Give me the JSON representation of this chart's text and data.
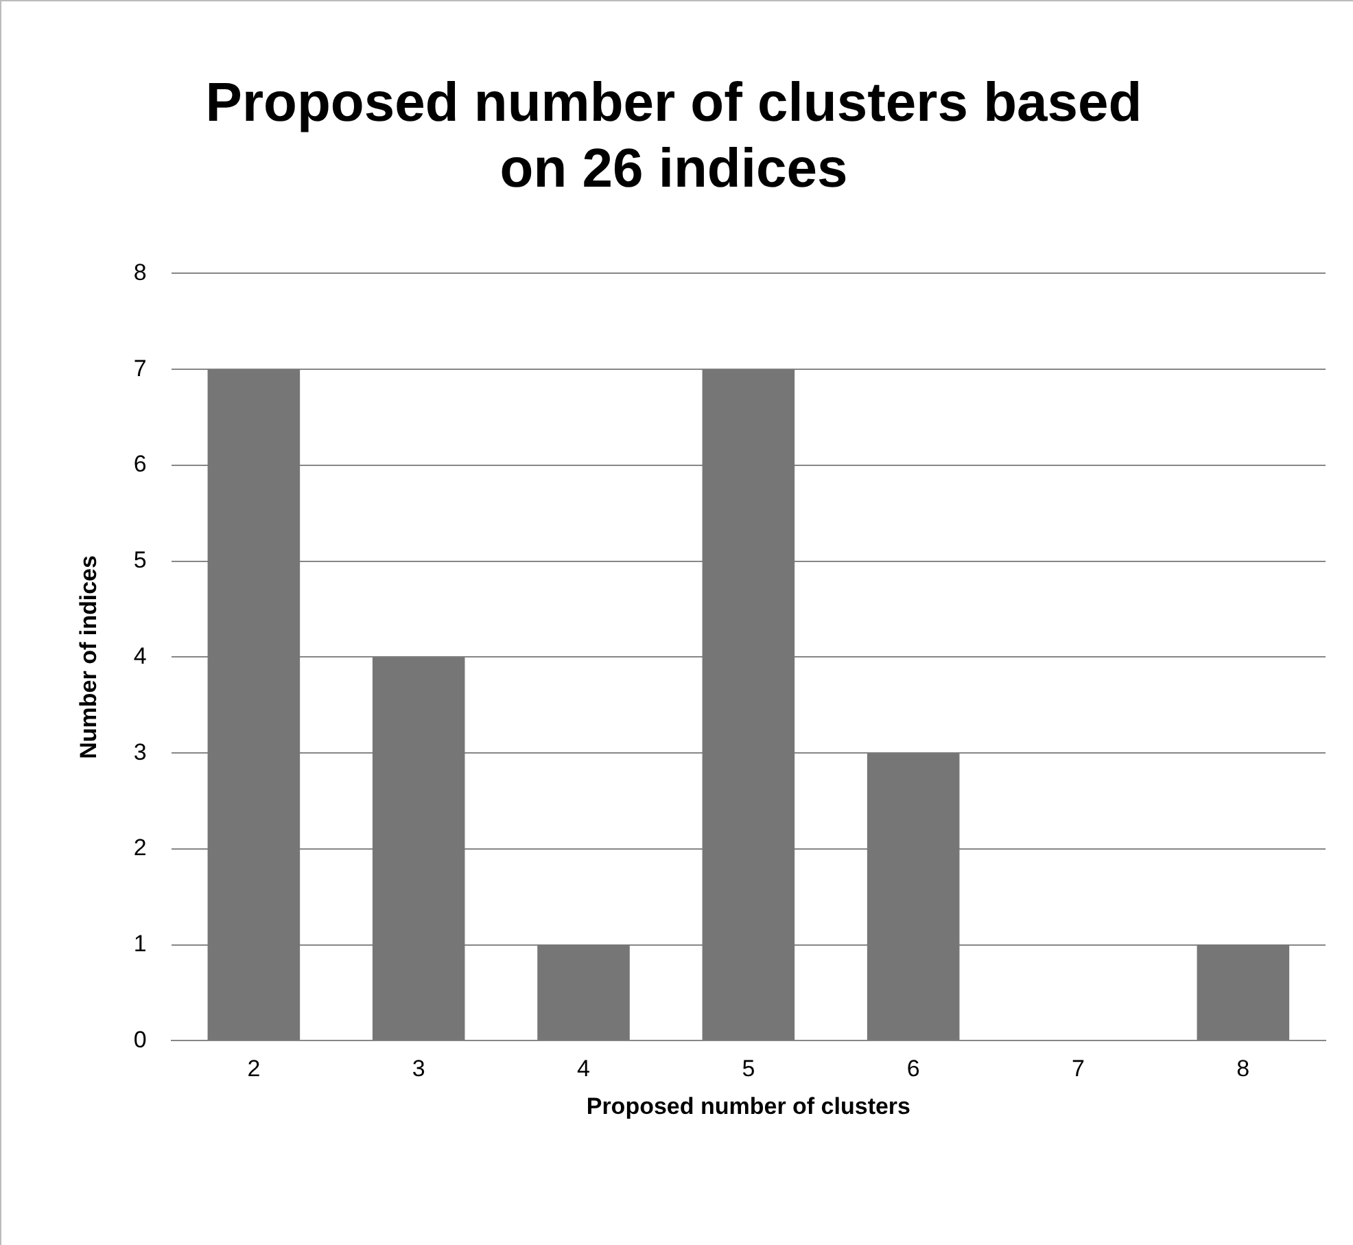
{
  "chart_data": {
    "type": "bar",
    "title": "Proposed number of clusters based on 26 indices",
    "xlabel": "Proposed number of clusters",
    "ylabel": "Number of indices",
    "categories": [
      "2",
      "3",
      "4",
      "5",
      "6",
      "7",
      "8"
    ],
    "values": [
      7,
      4,
      1,
      7,
      3,
      0,
      1
    ],
    "color": "#767676",
    "ylim": [
      0,
      8
    ],
    "yticks": [
      0,
      1,
      2,
      3,
      4,
      5,
      6,
      7,
      8
    ],
    "grid": "y"
  }
}
